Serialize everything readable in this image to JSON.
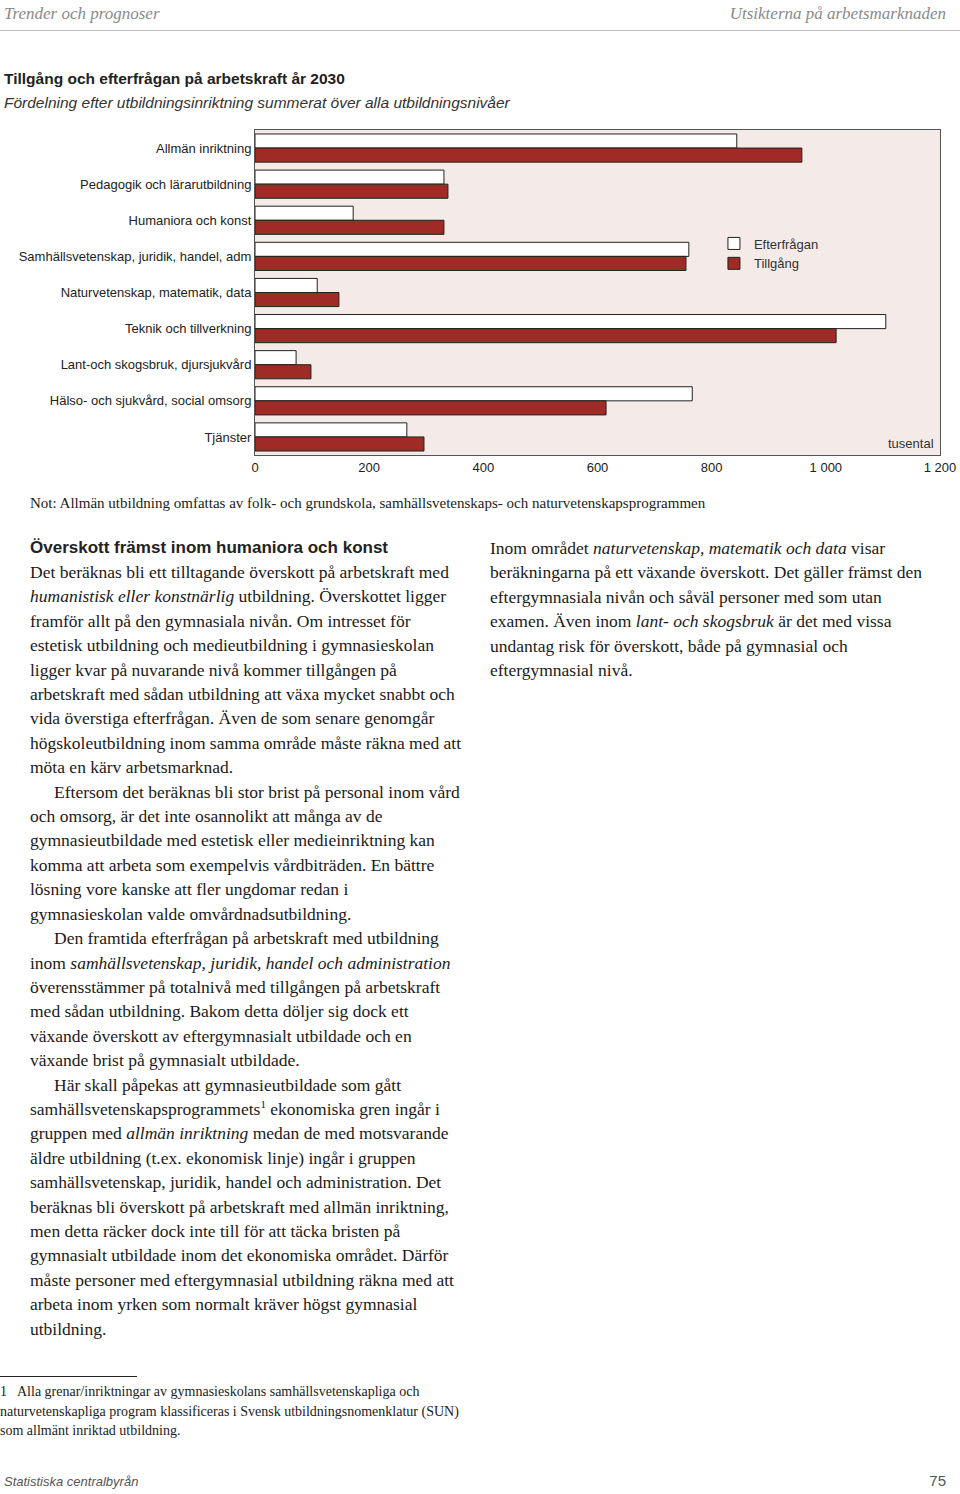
{
  "header": {
    "left": "Trender och prognoser",
    "right": "Utsikterna på arbetsmarknaden"
  },
  "chart_data": {
    "type": "bar",
    "orientation": "horizontal",
    "title": "Tillgång och efterfrågan på arbetskraft år 2030",
    "subtitle": "Fördelning efter utbildningsinriktning summerat över alla utbildningsnivåer",
    "x_label": "tusental",
    "categories": [
      "Allmän inriktning",
      "Pedagogik och lärarutbildning",
      "Humaniora och konst",
      "Samhällsvetenskap, juridik, handel, adm",
      "Naturvetenskap, matematik, data",
      "Teknik och tillverkning",
      "Lant-och skogsbruk, djursjukvård",
      "Hälso- och sjukvård, social omsorg",
      "Tjänster"
    ],
    "series": [
      {
        "name": "Efterfrågan",
        "color": "#ffffff",
        "values": [
          844,
          331,
          172,
          760,
          109,
          1105,
          72,
          766,
          266
        ]
      },
      {
        "name": "Tillgång",
        "color": "#9e2b25",
        "values": [
          958,
          338,
          331,
          755,
          147,
          1018,
          98,
          615,
          296
        ]
      }
    ],
    "xlim": [
      0,
      1200
    ],
    "xticks": [
      0,
      200,
      400,
      600,
      800,
      {
        "value": 1000,
        "label": "1 000"
      },
      {
        "value": 1200,
        "label": "1 200"
      }
    ],
    "grid": false,
    "legend": "right",
    "data_labels": false
  },
  "note": "Not: Allmän utbildning omfattas av folk- och grundskola, samhällsvetenskaps- och naturvetenskapsprogrammen",
  "text": {
    "columns": [
      {
        "heading": "Överskott främst inom humaniora och konst",
        "paragraphs": [
          [
            {
              "text": "Det beräknas bli ett tilltagande överskott på arbetskraft med "
            },
            {
              "text": "humanistisk eller konstnärlig",
              "italic": true
            },
            {
              "text": " utbildning. Överskottet ligger framför allt på den gymnasiala nivån. Om intresset för estetisk utbildning och medieutbildning i gymnasieskolan ligger kvar på nuvarande nivå kommer tillgången på arbetskraft med sådan utbildning att växa mycket snabbt och vida överstiga efterfrågan. Även de som senare genomgår högskoleutbildning inom samma område måste räkna med att möta en kärv arbetsmarknad."
            }
          ],
          [
            {
              "text": "Eftersom det beräknas bli stor brist på personal inom vård och omsorg, är det inte osannolikt att många av de gymnasieutbildade med estetisk eller medieinriktning kan komma att arbeta som exempelvis vårdbiträden. En bättre lösning vore kanske att fler ungdomar redan i gymnasieskolan valde omvårdnadsutbildning."
            }
          ],
          [
            {
              "text": "Den framtida efterfrågan på arbetskraft med utbildning inom "
            },
            {
              "text": "samhällsvetenskap, juridik, handel och administration",
              "italic": true
            },
            {
              "text": " överensstämmer på totalnivå med tillgången på arbetskraft med sådan utbildning. Bakom detta döljer sig dock ett växande överskott av eftergymnasialt utbildade och en växande brist på gymnasialt utbildade."
            }
          ],
          [
            {
              "text": "Här skall påpekas att gymnasieutbildade som gått samhällsvetenskapsprogrammets"
            },
            {
              "text": "1",
              "superscript": true
            },
            {
              "text": " ekonomiska gren ingår i gruppen med "
            },
            {
              "text": "allmän inriktning",
              "italic": true
            },
            {
              "text": " medan de med motsvarande äldre utbildning (t.ex. ekonomisk linje) ingår i gruppen samhällsvetenskap, juridik, handel och administration. Det beräknas bli överskott på arbetskraft med allmän inriktning, men detta räcker dock inte till för att täcka bristen på gymnasialt utbildade inom det ekonomiska området. Därför måste personer med eftergymnasial utbildning räkna med att arbeta inom yrken som normalt kräver högst gymnasial utbildning."
            }
          ]
        ]
      },
      {
        "paragraphs": [
          [
            {
              "text": "Inom området "
            },
            {
              "text": "naturvetenskap, matematik och data",
              "italic": true
            },
            {
              "text": " visar beräkningarna på ett växande överskott. Det gäller främst den eftergymnasiala nivån och såväl personer med som utan examen. Även inom "
            },
            {
              "text": "lant- och skogsbruk",
              "italic": true
            },
            {
              "text": " är det med vissa undantag risk för överskott, både på gymnasial och eftergymnasial nivå."
            }
          ]
        ]
      }
    ]
  },
  "footnote": {
    "mark": "1",
    "text": "Alla grenar/inriktningar av gymnasieskolans samhällsvetenskapliga och naturvetenskapliga program klassificeras i Svensk utbildningsnomenklatur (SUN) som allmänt inriktad utbildning."
  },
  "footer": {
    "left": "Statistiska centralbyrån",
    "right": "75"
  }
}
